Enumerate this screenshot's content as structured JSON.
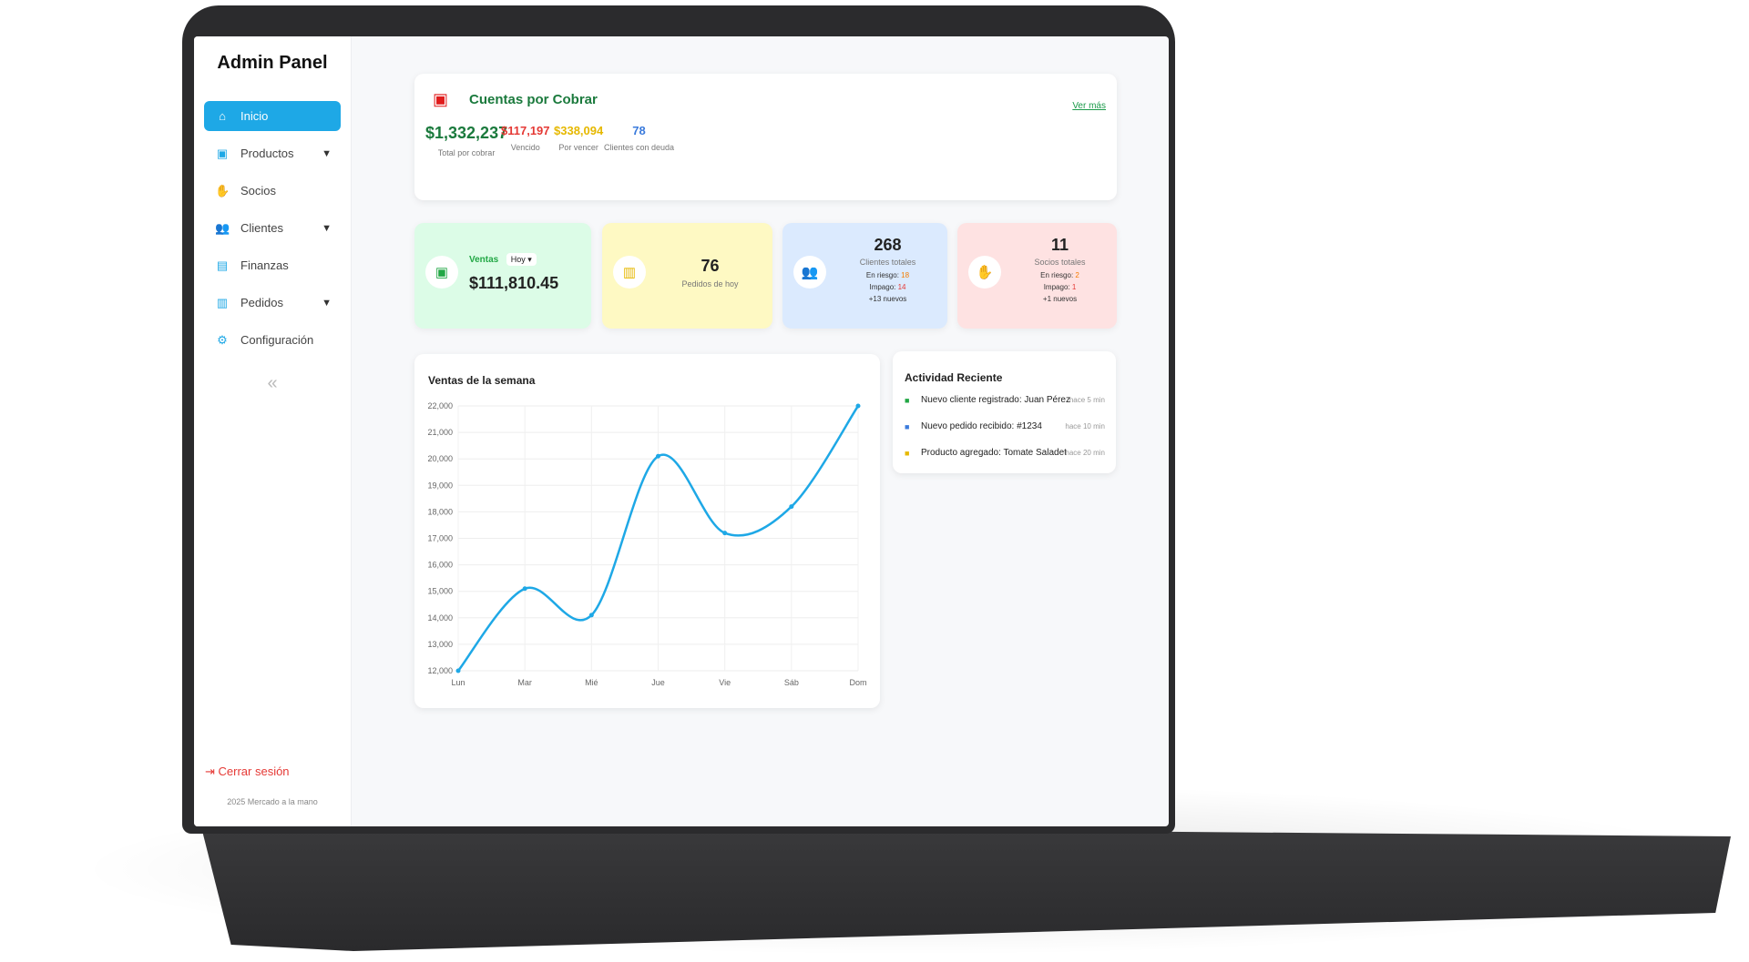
{
  "sidebar": {
    "brand": "Admin Panel",
    "items": [
      {
        "label": "Inicio",
        "icon": "home-icon",
        "glyph": "⌂",
        "active": true,
        "caret": false
      },
      {
        "label": "Productos",
        "icon": "box-icon",
        "glyph": "▣",
        "caret": true
      },
      {
        "label": "Socios",
        "icon": "handshake-icon",
        "glyph": "✋",
        "caret": false
      },
      {
        "label": "Clientes",
        "icon": "users-icon",
        "glyph": "👥",
        "caret": true
      },
      {
        "label": "Finanzas",
        "icon": "money-icon",
        "glyph": "▤",
        "caret": false
      },
      {
        "label": "Pedidos",
        "icon": "clipboard-icon",
        "glyph": "▥",
        "caret": true
      },
      {
        "label": "Configuración",
        "icon": "gear-icon",
        "glyph": "⚙",
        "caret": false
      }
    ],
    "collapse": "«",
    "logout": "Cerrar sesión",
    "footer": "2025 Mercado a la mano"
  },
  "cuentas": {
    "title": "Cuentas por Cobrar",
    "link": "Ver más",
    "metrics": [
      {
        "value": "$1,332,237",
        "label": "Total por cobrar",
        "color": "#1b7a3d"
      },
      {
        "value": "$117,197",
        "label": "Vencido",
        "color": "#e53935"
      },
      {
        "value": "$338,094",
        "label": "Por vencer",
        "color": "#e6b800"
      },
      {
        "value": "78",
        "label": "Clientes con deuda",
        "color": "#3b7bdc"
      }
    ]
  },
  "stats": {
    "ventas": {
      "label": "Ventas",
      "period": "Hoy",
      "value": "$111,810.45",
      "bg": "#dcfce7"
    },
    "pedidos": {
      "value": "76",
      "label": "Pedidos de hoy",
      "bg": "#fef9c3"
    },
    "clientes": {
      "value": "268",
      "label": "Clientes totales",
      "riesgo_label": "En riesgo:",
      "riesgo": "18",
      "impago_label": "Impago:",
      "impago": "14",
      "nuevos": "+13 nuevos",
      "bg": "#dbeafe"
    },
    "socios": {
      "value": "11",
      "label": "Socios totales",
      "riesgo_label": "En riesgo:",
      "riesgo": "2",
      "impago_label": "Impago:",
      "impago": "1",
      "nuevos": "+1 nuevos",
      "bg": "#fee2e2"
    }
  },
  "chart_data": {
    "type": "line",
    "title": "Ventas de la semana",
    "categories": [
      "Lun",
      "Mar",
      "Mié",
      "Jue",
      "Vie",
      "Sáb",
      "Dom"
    ],
    "values": [
      12000,
      15100,
      14100,
      20100,
      17200,
      18200,
      22000
    ],
    "ylim": [
      12000,
      22000
    ],
    "yticks": [
      "22,000",
      "21,000",
      "20,000",
      "19,000",
      "18,000",
      "17,000",
      "16,000",
      "15,000",
      "14,000",
      "13,000",
      "12,000"
    ],
    "grid": true,
    "color": "#1ea8e6",
    "smooth": true
  },
  "actividad": {
    "title": "Actividad Reciente",
    "items": [
      {
        "text": "Nuevo cliente registrado: Juan Pérez",
        "time": "hace 5 min",
        "icon": "user-plus-icon",
        "color": "#22a745"
      },
      {
        "text": "Nuevo pedido recibido: #1234",
        "time": "hace 10 min",
        "icon": "clipboard-icon",
        "color": "#3b7bdc"
      },
      {
        "text": "Producto agregado: Tomate Saladet",
        "time": "hace 20 min",
        "icon": "box-icon",
        "color": "#e6b800"
      }
    ]
  }
}
